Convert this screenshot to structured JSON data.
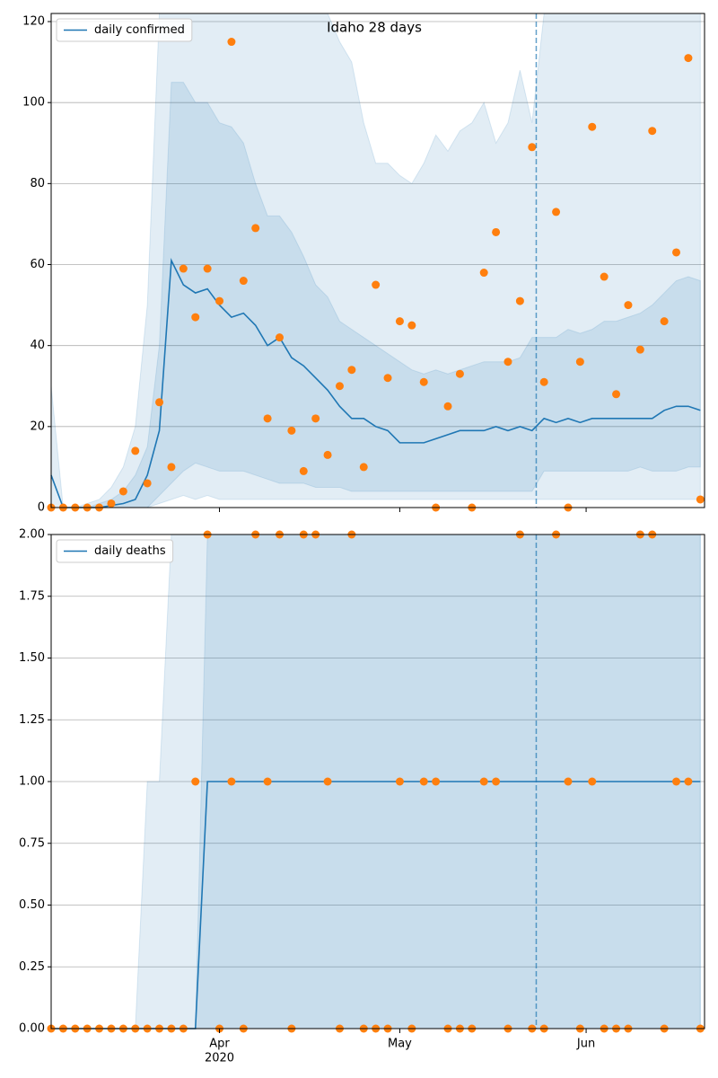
{
  "chart_data": [
    {
      "type": "line",
      "title": "Idaho 28 days",
      "legend": "upper left",
      "grid": true,
      "xlim": [
        0,
        108.7
      ],
      "ylim": [
        0,
        122
      ],
      "yticks": [
        0,
        20,
        40,
        60,
        80,
        100,
        120
      ],
      "vline": 80.7,
      "x": [
        0,
        2,
        4,
        6,
        8,
        10,
        12,
        14,
        16,
        18,
        20,
        22,
        24,
        26,
        28,
        30,
        32,
        34,
        36,
        38,
        40,
        42,
        44,
        46,
        48,
        50,
        52,
        54,
        56,
        58,
        60,
        62,
        64,
        66,
        68,
        70,
        72,
        74,
        76,
        78,
        80,
        82,
        84,
        86,
        88,
        90,
        92,
        94,
        96,
        98,
        100,
        102,
        104,
        106,
        108
      ],
      "series": [
        {
          "name": "daily confirmed",
          "color": "#1f77b4",
          "values": [
            8,
            0,
            0,
            0,
            0,
            0.5,
            1,
            2,
            8,
            19,
            61,
            55,
            53,
            54,
            50,
            47,
            48,
            45,
            40,
            42,
            37,
            35,
            32,
            29,
            25,
            22,
            22,
            20,
            19,
            16,
            16,
            16,
            17,
            18,
            19,
            19,
            19,
            20,
            19,
            20,
            19,
            22,
            21,
            22,
            21,
            22,
            22,
            22,
            22,
            22,
            22,
            24,
            25,
            25,
            24
          ]
        }
      ],
      "points": {
        "color": "#ff7f0e",
        "values": [
          0,
          0,
          0,
          0,
          0,
          1,
          4,
          14,
          6,
          26,
          10,
          59,
          47,
          59,
          51,
          115,
          56,
          69,
          22,
          42,
          19,
          9,
          22,
          13,
          30,
          34,
          10,
          55,
          32,
          46,
          45,
          31,
          0,
          25,
          33,
          0,
          58,
          68,
          36,
          51,
          89,
          31,
          73,
          0,
          36,
          94,
          57,
          28,
          50,
          39,
          93,
          46,
          63,
          111,
          2
        ]
      },
      "band_color": "#1f77b4",
      "bands": [
        {
          "upper": [
            30,
            0,
            0,
            1,
            2,
            5,
            10,
            20,
            50,
            122,
            122,
            122,
            122,
            122,
            122,
            122,
            122,
            122,
            122,
            122,
            122,
            122,
            122,
            122,
            115,
            110,
            95,
            85,
            85,
            82,
            80,
            85,
            92,
            88,
            93,
            95,
            100,
            90,
            95,
            108,
            95,
            122,
            122,
            122,
            122,
            122,
            122,
            122,
            122,
            122,
            122,
            122,
            122,
            122,
            122
          ],
          "lower": [
            0,
            0,
            0,
            0,
            0,
            0,
            0,
            0,
            0,
            1,
            2,
            3,
            2,
            3,
            2,
            2,
            2,
            2,
            2,
            2,
            2,
            2,
            2,
            2,
            2,
            2,
            2,
            2,
            2,
            2,
            2,
            2,
            2,
            2,
            2,
            2,
            2,
            2,
            2,
            2,
            2,
            2,
            2,
            2,
            2,
            2,
            2,
            2,
            2,
            2,
            2,
            2,
            2,
            2,
            2
          ]
        },
        {
          "upper": [
            0,
            0,
            0,
            0,
            1,
            2,
            4,
            8,
            15,
            40,
            105,
            105,
            100,
            100,
            95,
            94,
            90,
            80,
            72,
            72,
            68,
            62,
            55,
            52,
            46,
            44,
            42,
            40,
            38,
            36,
            34,
            33,
            34,
            33,
            34,
            35,
            36,
            36,
            36,
            37,
            42,
            42,
            42,
            44,
            43,
            44,
            46,
            46,
            47,
            48,
            50,
            53,
            56,
            57,
            56
          ],
          "lower": [
            0,
            0,
            0,
            0,
            0,
            0,
            0,
            0,
            0,
            3,
            6,
            9,
            11,
            10,
            9,
            9,
            9,
            8,
            7,
            6,
            6,
            6,
            5,
            5,
            5,
            4,
            4,
            4,
            4,
            4,
            4,
            4,
            4,
            4,
            4,
            4,
            4,
            4,
            4,
            4,
            4,
            9,
            9,
            9,
            9,
            9,
            9,
            9,
            9,
            10,
            9,
            9,
            9,
            10,
            10
          ]
        }
      ]
    },
    {
      "type": "line",
      "legend": "upper left",
      "grid": true,
      "xlim": [
        0,
        108.7
      ],
      "ylim": [
        0,
        2
      ],
      "yticks": [
        {
          "value": 0,
          "label": "0.00"
        },
        {
          "value": 0.25,
          "label": "0.25"
        },
        {
          "value": 0.5,
          "label": "0.50"
        },
        {
          "value": 0.75,
          "label": "0.75"
        },
        {
          "value": 1,
          "label": "1.00"
        },
        {
          "value": 1.25,
          "label": "1.25"
        },
        {
          "value": 1.5,
          "label": "1.50"
        },
        {
          "value": 1.75,
          "label": "1.75"
        },
        {
          "value": 2,
          "label": "2.00"
        }
      ],
      "xticks": [
        {
          "value": 28,
          "label": "Apr"
        },
        {
          "value": 58,
          "label": "May"
        },
        {
          "value": 89,
          "label": "Jun"
        }
      ],
      "x_year_label": "2020",
      "vline": 80.7,
      "x": [
        0,
        2,
        4,
        6,
        8,
        10,
        12,
        14,
        16,
        18,
        20,
        22,
        24,
        26,
        28,
        30,
        32,
        34,
        36,
        38,
        40,
        42,
        44,
        46,
        48,
        50,
        52,
        54,
        56,
        58,
        60,
        62,
        64,
        66,
        68,
        70,
        72,
        74,
        76,
        78,
        80,
        82,
        84,
        86,
        88,
        90,
        92,
        94,
        96,
        98,
        100,
        102,
        104,
        106,
        108
      ],
      "series": [
        {
          "name": "daily deaths",
          "color": "#1f77b4",
          "values": [
            0,
            0,
            0,
            0,
            0,
            0,
            0,
            0,
            0,
            0,
            0,
            0,
            0,
            1,
            1,
            1,
            1,
            1,
            1,
            1,
            1,
            1,
            1,
            1,
            1,
            1,
            1,
            1,
            1,
            1,
            1,
            1,
            1,
            1,
            1,
            1,
            1,
            1,
            1,
            1,
            1,
            1,
            1,
            1,
            1,
            1,
            1,
            1,
            1,
            1,
            1,
            1,
            1,
            1,
            1
          ]
        }
      ],
      "points": {
        "color": "#ff7f0e",
        "values": [
          0,
          0,
          0,
          0,
          0,
          0,
          0,
          0,
          0,
          0,
          0,
          0,
          1,
          2,
          0,
          1,
          0,
          2,
          1,
          2,
          0,
          2,
          2,
          1,
          0,
          2,
          0,
          0,
          0,
          1,
          0,
          1,
          1,
          0,
          0,
          0,
          1,
          1,
          0,
          2,
          0,
          0,
          2,
          1,
          0,
          1,
          0,
          0,
          0,
          2,
          2,
          0,
          1,
          1,
          0
        ]
      },
      "band_color": "#1f77b4",
      "bands": [
        {
          "upper": [
            0,
            0,
            0,
            0,
            0,
            0,
            0,
            0,
            1,
            1,
            2,
            2,
            2,
            2,
            2,
            2,
            2,
            2,
            2,
            2,
            2,
            2,
            2,
            2,
            2,
            2,
            2,
            2,
            2,
            2,
            2,
            2,
            2,
            2,
            2,
            2,
            2,
            2,
            2,
            2,
            2,
            2,
            2,
            2,
            2,
            2,
            2,
            2,
            2,
            2,
            2,
            2,
            2,
            2,
            2
          ]
        },
        {
          "upper": [
            0,
            0,
            0,
            0,
            0,
            0,
            0,
            0,
            0,
            0,
            0,
            0,
            0,
            2,
            2,
            2,
            2,
            2,
            2,
            2,
            2,
            2,
            2,
            2,
            2,
            2,
            2,
            2,
            2,
            2,
            2,
            2,
            2,
            2,
            2,
            2,
            2,
            2,
            2,
            2,
            2,
            2,
            2,
            2,
            2,
            2,
            2,
            2,
            2,
            2,
            2,
            2,
            2,
            2,
            2
          ]
        }
      ]
    }
  ]
}
